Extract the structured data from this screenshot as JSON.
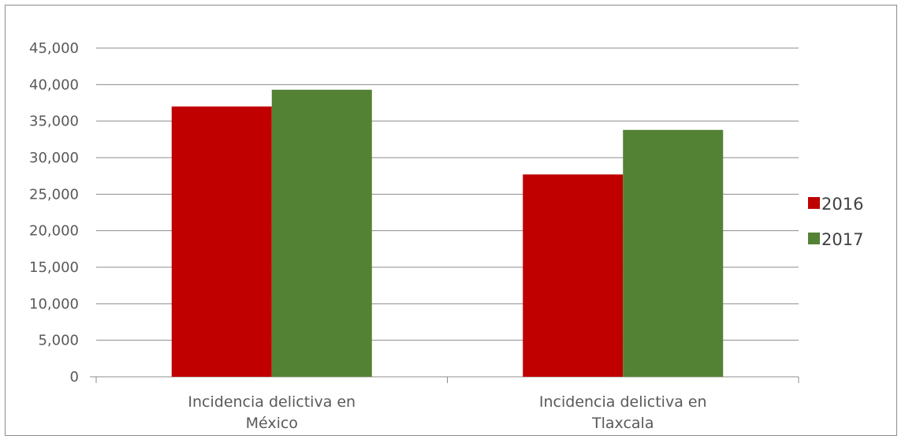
{
  "chart_data": {
    "type": "bar",
    "categories": [
      [
        "Incidencia delictiva en",
        "México"
      ],
      [
        "Incidencia delictiva en",
        "Tlaxcala"
      ]
    ],
    "series": [
      {
        "name": "2016",
        "color": "#c00000",
        "values": [
          37000,
          27700
        ]
      },
      {
        "name": "2017",
        "color": "#548235",
        "values": [
          39300,
          33800
        ]
      }
    ],
    "ylim": [
      0,
      45000
    ],
    "yticks": [
      "0",
      "5,000",
      "10,000",
      "15,000",
      "20,000",
      "25,000",
      "30,000",
      "35,000",
      "40,000",
      "45,000"
    ],
    "grid": true,
    "legend_position": "right"
  }
}
